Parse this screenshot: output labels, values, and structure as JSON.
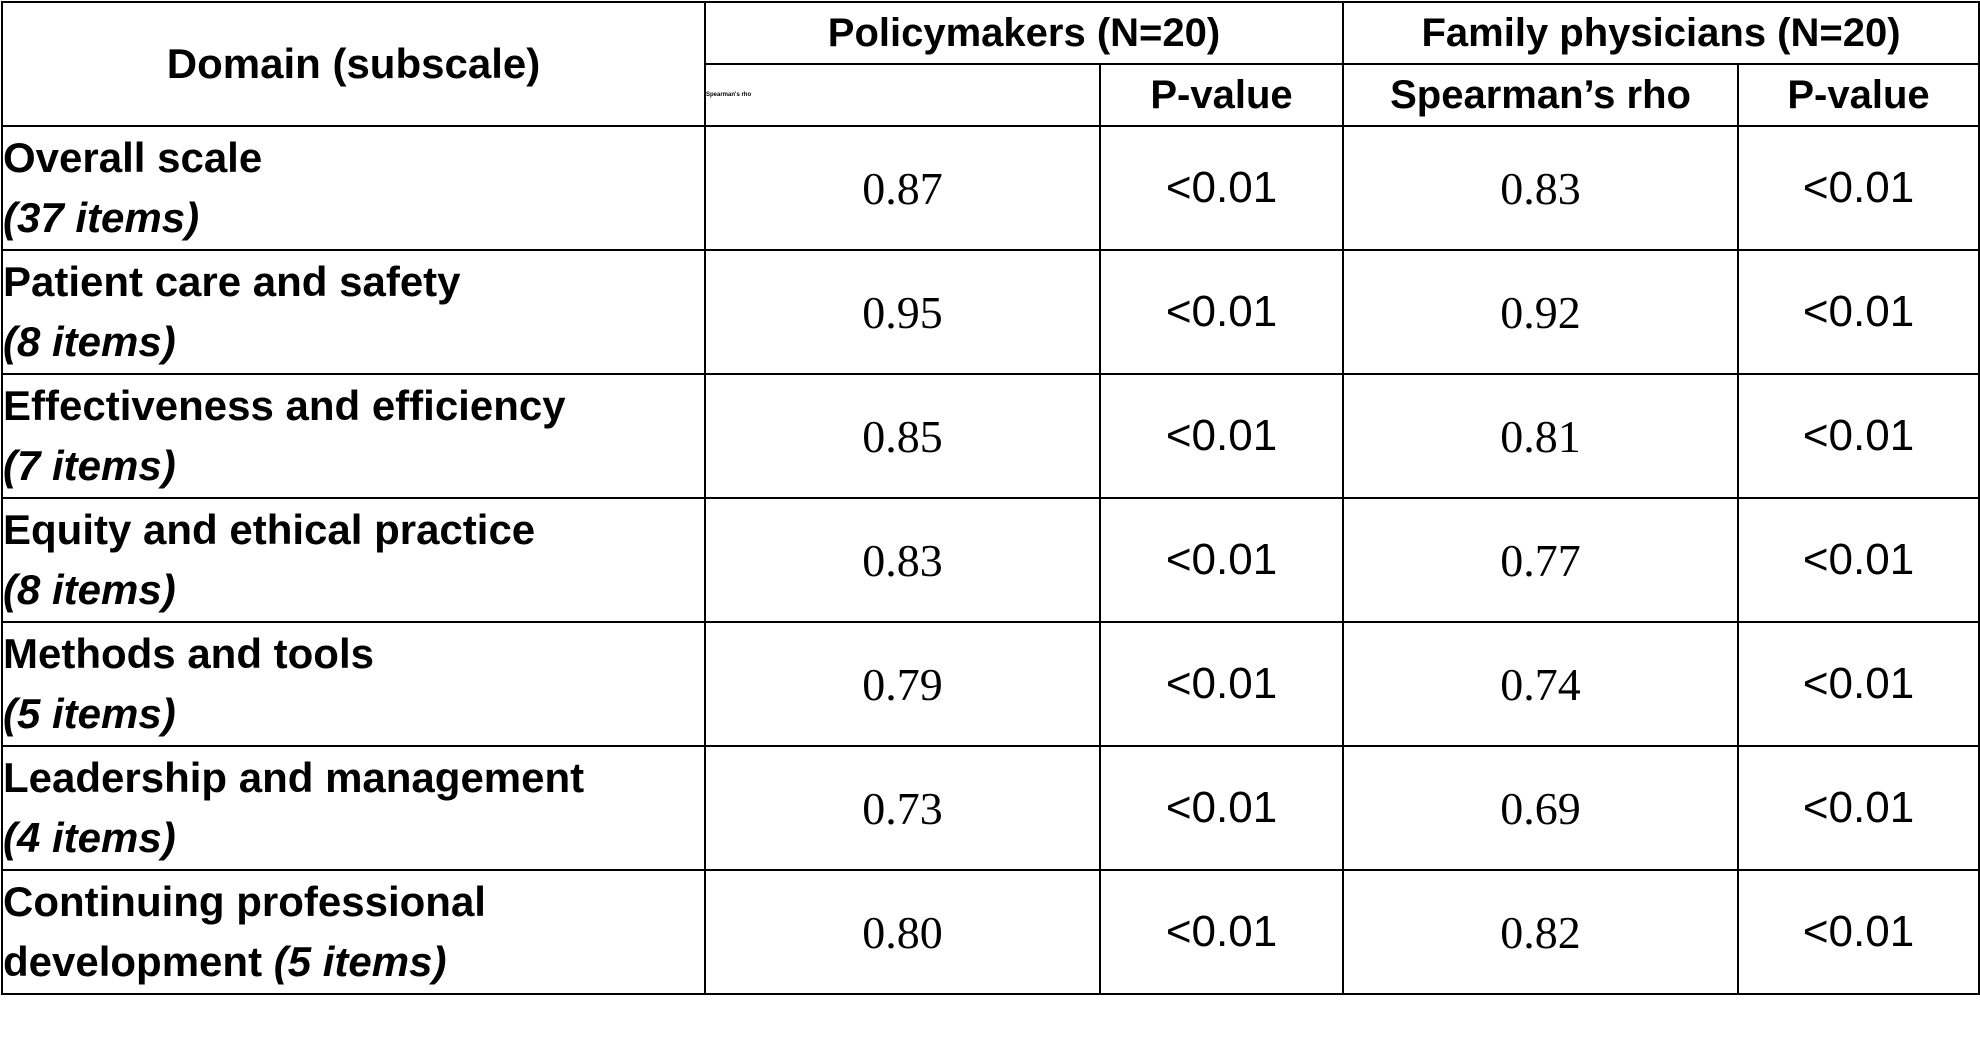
{
  "table": {
    "header": {
      "domain": "Domain (subscale)",
      "group_policymakers": "Policymakers (N=20)",
      "group_physicians": "Family physicians (N=20)",
      "pm_rho": "Spearman's rho",
      "pm_p": "P-value",
      "fp_rho": "Spearman’s rho",
      "fp_p": "P-value"
    },
    "rows": [
      {
        "title": "Overall scale",
        "items": "(37 items)",
        "pm_rho": "0.87",
        "pm_p": "<0.01",
        "fp_rho": "0.83",
        "fp_p": "<0.01"
      },
      {
        "title": "Patient care and safety",
        "items": "(8 items)",
        "pm_rho": "0.95",
        "pm_p": "<0.01",
        "fp_rho": "0.92",
        "fp_p": "<0.01"
      },
      {
        "title": "Effectiveness and efficiency",
        "items": "(7 items)",
        "pm_rho": "0.85",
        "pm_p": "<0.01",
        "fp_rho": "0.81",
        "fp_p": "<0.01"
      },
      {
        "title": "Equity and ethical practice",
        "items": "(8 items)",
        "pm_rho": "0.83",
        "pm_p": "<0.01",
        "fp_rho": "0.77",
        "fp_p": "<0.01"
      },
      {
        "title": "Methods and tools",
        "items": "(5 items)",
        "pm_rho": "0.79",
        "pm_p": "<0.01",
        "fp_rho": "0.74",
        "fp_p": "<0.01"
      },
      {
        "title": "Leadership and management",
        "items": "(4 items)",
        "pm_rho": "0.73",
        "pm_p": "<0.01",
        "fp_rho": "0.69",
        "fp_p": "<0.01"
      },
      {
        "title": "Continuing professional",
        "title2": "development",
        "items": "(5 items)",
        "pm_rho": "0.80",
        "pm_p": "<0.01",
        "fp_rho": "0.82",
        "fp_p": "<0.01"
      }
    ]
  }
}
